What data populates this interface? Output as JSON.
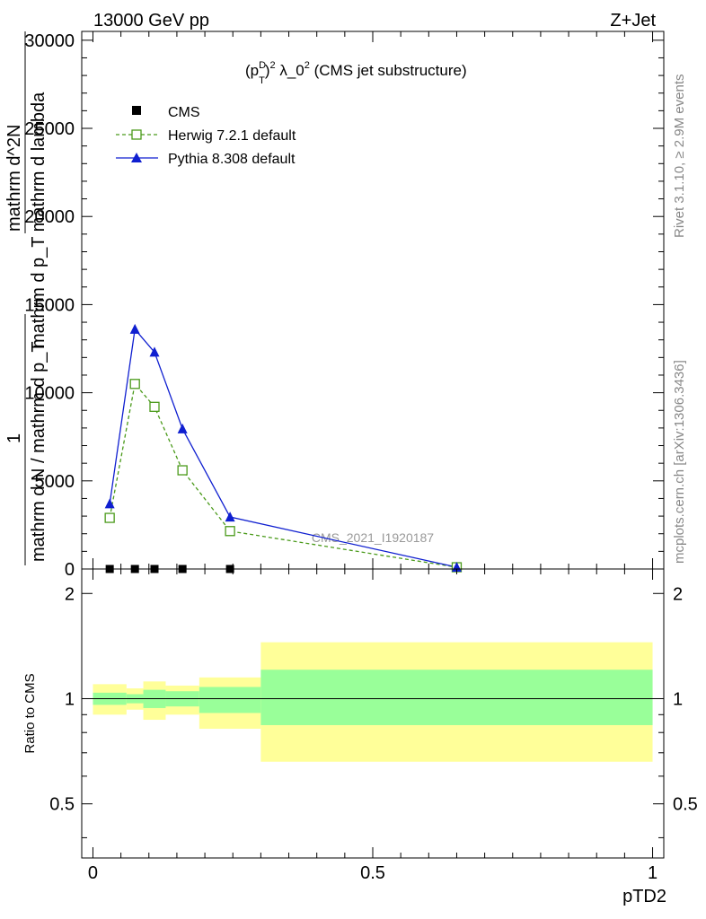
{
  "header": {
    "left": "13000 GeV pp",
    "right": "Z+Jet"
  },
  "side_text": {
    "rivet": "Rivet 3.1.10, ≥ 2.9M events",
    "mcplots": "mcplots.cern.ch [arXiv:1306.3436]"
  },
  "watermark": "CMS_2021_I1920187",
  "chart_data": [
    {
      "type": "line",
      "title": "(p_T^D)^2 λ_0^2 (CMS jet substructure)",
      "title_parts": {
        "p": "(p",
        "sub": "T",
        "sup": "D",
        "close": ")",
        "sq": "2",
        "mid": " λ_0",
        "sq2": "2",
        "tail": " (CMS jet substructure)"
      },
      "ylabel_lines": [
        "mathrm d^2N",
        "mathrm d p_T mathrm d lambda",
        "1",
        "mathrm d N / mathrm d p_T"
      ],
      "xlabel": "pTD2",
      "ylim": [
        0,
        30500
      ],
      "xlim": [
        -0.02,
        1.02
      ],
      "yticks": [
        "0",
        "5000",
        "10000",
        "15000",
        "20000",
        "25000",
        "30000"
      ],
      "legend_position": "top-left",
      "series": [
        {
          "name": "CMS",
          "color": "#000000",
          "marker": "filled-square",
          "x": [
            0.03,
            0.075,
            0.11,
            0.16,
            0.245
          ],
          "y": [
            0,
            0,
            0,
            0,
            0
          ]
        },
        {
          "name": "Herwig 7.2.1 default",
          "color": "#4a9a1a",
          "marker": "open-square",
          "style": "dashed",
          "x": [
            0.03,
            0.075,
            0.11,
            0.16,
            0.245,
            0.65
          ],
          "y": [
            2900,
            10500,
            9200,
            5600,
            2150,
            100
          ]
        },
        {
          "name": "Pythia 8.308 default",
          "color": "#0f1fd0",
          "marker": "filled-triangle",
          "style": "solid",
          "x": [
            0.03,
            0.075,
            0.11,
            0.16,
            0.245,
            0.65
          ],
          "y": [
            3700,
            13600,
            12300,
            7950,
            2950,
            100
          ]
        }
      ]
    },
    {
      "type": "area",
      "ylabel": "Ratio to CMS",
      "xlabel": "pTD2",
      "ylim": [
        0.35,
        2.35
      ],
      "xlim": [
        -0.02,
        1.02
      ],
      "yticks": [
        "0.5",
        "1",
        "2"
      ],
      "xticks": [
        "0",
        "0.5",
        "1"
      ],
      "bands": {
        "inner_color": "#99ff99",
        "outer_color": "#ffff99",
        "bins": [
          {
            "x0": 0.0,
            "x1": 0.06,
            "inner": [
              0.96,
              1.04
            ],
            "outer": [
              0.9,
              1.1
            ]
          },
          {
            "x0": 0.06,
            "x1": 0.09,
            "inner": [
              0.97,
              1.03
            ],
            "outer": [
              0.93,
              1.07
            ]
          },
          {
            "x0": 0.09,
            "x1": 0.13,
            "inner": [
              0.94,
              1.06
            ],
            "outer": [
              0.87,
              1.12
            ]
          },
          {
            "x0": 0.13,
            "x1": 0.19,
            "inner": [
              0.95,
              1.05
            ],
            "outer": [
              0.9,
              1.09
            ]
          },
          {
            "x0": 0.19,
            "x1": 0.3,
            "inner": [
              0.91,
              1.08
            ],
            "outer": [
              0.82,
              1.15
            ]
          },
          {
            "x0": 0.3,
            "x1": 1.0,
            "inner": [
              0.84,
              1.21
            ],
            "outer": [
              0.66,
              1.45
            ]
          }
        ]
      }
    }
  ]
}
